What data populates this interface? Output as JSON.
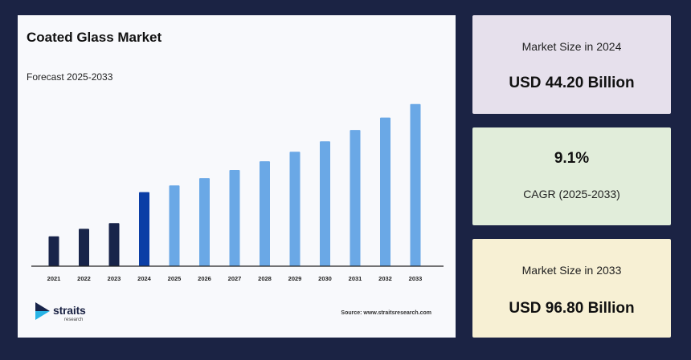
{
  "chart_data": {
    "type": "bar",
    "title": "Coated Glass Market",
    "subtitle": "Forecast 2025-2033",
    "categories": [
      "2021",
      "2022",
      "2023",
      "2024",
      "2025",
      "2026",
      "2027",
      "2028",
      "2029",
      "2030",
      "2031",
      "2032",
      "2033"
    ],
    "values": [
      17.8,
      22.3,
      25.7,
      44.2,
      48.2,
      52.6,
      57.4,
      62.6,
      68.3,
      74.5,
      81.3,
      88.7,
      96.8
    ],
    "ylim": [
      0,
      100
    ],
    "xlabel": "",
    "ylabel": "",
    "grid": false,
    "colors": {
      "historical": "#18244a",
      "base_year": "#0b3ea6",
      "forecast": "#6aa8e6"
    },
    "highlight_category": "2024"
  },
  "brand": {
    "name": "straits",
    "tagline": "research",
    "source": "Source: www.straitsresearch.com"
  },
  "stats": [
    {
      "label": "Market Size in 2024",
      "value": "USD 44.20 Billion"
    },
    {
      "label": "CAGR (2025-2033)",
      "value": "9.1%"
    },
    {
      "label": "Market Size in 2033",
      "value": "USD 96.80 Billion"
    }
  ]
}
